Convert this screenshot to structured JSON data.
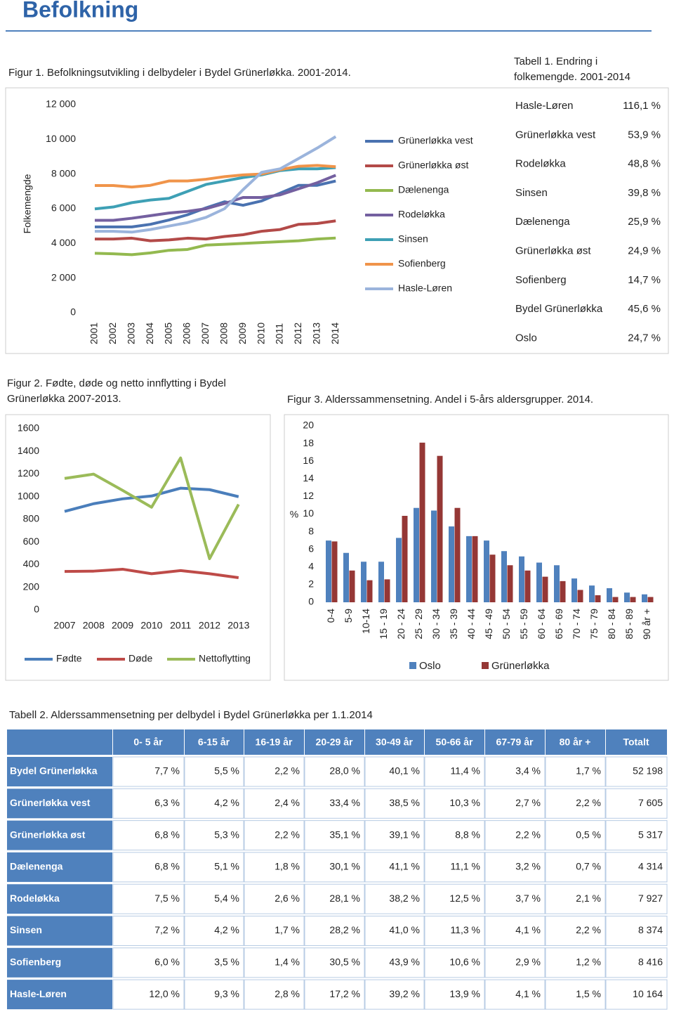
{
  "title": "Befolkning",
  "chart_data": [
    {
      "type": "line",
      "title": "Figur 1. Befolkningsutvikling i delbydeler i Bydel Grünerløkka. 2001-2014.",
      "y_label": "Folkemengde",
      "categories": [
        "2001",
        "2002",
        "2003",
        "2004",
        "2005",
        "2006",
        "2007",
        "2008",
        "2009",
        "2010",
        "2011",
        "2012",
        "2013",
        "2014"
      ],
      "ylim": [
        0,
        12000
      ],
      "yticks": [
        0,
        {
          "value": 2000,
          "label": "2 000"
        },
        {
          "value": 4000,
          "label": "4 000"
        },
        {
          "value": 6000,
          "label": "6 000"
        },
        {
          "value": 8000,
          "label": "8 000"
        },
        {
          "value": 10000,
          "label": "10 000"
        },
        {
          "value": 12000,
          "label": "12 000"
        }
      ],
      "series": [
        {
          "name": "Grünerløkka vest",
          "color": "#4a72b0",
          "values": [
            4950,
            4950,
            4950,
            5100,
            5350,
            5650,
            6050,
            6400,
            6200,
            6450,
            6900,
            7350,
            7350,
            7600
          ]
        },
        {
          "name": "Grünerløkka øst",
          "color": "#b34a48",
          "values": [
            4250,
            4250,
            4300,
            4150,
            4200,
            4300,
            4250,
            4400,
            4500,
            4700,
            4800,
            5100,
            5150,
            5300
          ]
        },
        {
          "name": "Dælenenga",
          "color": "#93b94f",
          "values": [
            3430,
            3400,
            3350,
            3450,
            3600,
            3650,
            3900,
            3950,
            4000,
            4050,
            4100,
            4150,
            4250,
            4310
          ]
        },
        {
          "name": "Rodeløkka",
          "color": "#7460a0",
          "values": [
            5330,
            5330,
            5450,
            5600,
            5750,
            5850,
            6000,
            6300,
            6650,
            6650,
            6800,
            7150,
            7500,
            7930
          ]
        },
        {
          "name": "Sinsen",
          "color": "#3ea0b5",
          "values": [
            5990,
            6100,
            6350,
            6500,
            6600,
            7000,
            7400,
            7600,
            7800,
            7950,
            8200,
            8300,
            8300,
            8370
          ]
        },
        {
          "name": "Sofienberg",
          "color": "#f0944a",
          "values": [
            7340,
            7340,
            7250,
            7350,
            7600,
            7600,
            7700,
            7850,
            7950,
            8000,
            8250,
            8450,
            8500,
            8420
          ]
        },
        {
          "name": "Hasle-Løren",
          "color": "#9bb4dc",
          "values": [
            4700,
            4700,
            4650,
            4800,
            5000,
            5200,
            5500,
            6000,
            7100,
            8100,
            8300,
            8900,
            9500,
            10160
          ]
        }
      ]
    },
    {
      "type": "line",
      "title": "Figur 2. Fødte, døde og netto innflytting i Bydel Grünerløkka 2007-2013.",
      "categories": [
        "2007",
        "2008",
        "2009",
        "2010",
        "2011",
        "2012",
        "2013"
      ],
      "ylim": [
        0,
        1600
      ],
      "yticks": [
        0,
        200,
        400,
        600,
        800,
        1000,
        1200,
        1400,
        1600
      ],
      "series": [
        {
          "name": "Fødte",
          "color": "#4a7ebb",
          "values": [
            870,
            938,
            981,
            1006,
            1075,
            1062,
            1000
          ]
        },
        {
          "name": "Døde",
          "color": "#be4b48",
          "values": [
            340,
            343,
            360,
            320,
            348,
            320,
            285
          ]
        },
        {
          "name": "Nettoflytting",
          "color": "#9bbb59",
          "values": [
            1161,
            1199,
            1056,
            907,
            1342,
            453,
            932
          ]
        }
      ]
    },
    {
      "type": "bar",
      "title": "Figur 3. Alderssammensetning. Andel i 5-års aldersgrupper. 2014.",
      "y_label": "%",
      "categories": [
        "0-4",
        "5-9",
        "10-14",
        "15 - 19",
        "20 - 24",
        "25 - 29",
        "30 - 34",
        "35 - 39",
        "40 - 44",
        "45 - 49",
        "50 - 54",
        "55 - 59",
        "60 - 64",
        "65 - 69",
        "70 - 74",
        "75 - 79",
        "80 - 84",
        "85 - 89",
        "90 år +"
      ],
      "ylim": [
        0,
        20
      ],
      "yticks": [
        0,
        2,
        4,
        6,
        8,
        10,
        12,
        14,
        16,
        18,
        20
      ],
      "series": [
        {
          "name": "Oslo",
          "color": "#4f81bd",
          "values": [
            7.0,
            5.6,
            4.6,
            4.6,
            7.3,
            10.7,
            10.4,
            8.6,
            7.5,
            7.0,
            5.8,
            5.2,
            4.5,
            4.2,
            2.7,
            1.9,
            1.6,
            1.1,
            0.9
          ]
        },
        {
          "name": "Grünerløkka",
          "color": "#953735",
          "values": [
            6.9,
            3.6,
            2.5,
            2.6,
            9.8,
            18.1,
            16.6,
            10.7,
            7.5,
            5.4,
            4.2,
            3.6,
            2.9,
            2.4,
            1.4,
            0.8,
            0.6,
            0.6,
            0.6
          ]
        }
      ]
    }
  ],
  "table1": {
    "title": "Tabell 1. Endring i folkemengde. 2001-2014",
    "rows": [
      [
        "Hasle-Løren",
        "116,1 %"
      ],
      [
        "Grünerløkka vest",
        "53,9 %"
      ],
      [
        "Rodeløkka",
        "48,8 %"
      ],
      [
        "Sinsen",
        "39,8 %"
      ],
      [
        "Dælenenga",
        "25,9 %"
      ],
      [
        "Grünerløkka øst",
        "24,9 %"
      ],
      [
        "Sofienberg",
        "14,7 %"
      ],
      [
        "Bydel Grünerløkka",
        "45,6 %"
      ],
      [
        "Oslo",
        "24,7 %"
      ]
    ]
  },
  "table2": {
    "title": "Tabell 2. Alderssammensetning per delbydel i Bydel Grünerløkka per 1.1.2014",
    "columns": [
      "0- 5 år",
      "6-15 år",
      "16-19 år",
      "20-29 år",
      "30-49 år",
      "50-66 år",
      "67-79 år",
      "80  år +",
      "Totalt"
    ],
    "rows": [
      [
        "Bydel Grünerløkka",
        "7,7 %",
        "5,5 %",
        "2,2 %",
        "28,0 %",
        "40,1 %",
        "11,4 %",
        "3,4 %",
        "1,7 %",
        "52 198"
      ],
      [
        "Grünerløkka vest",
        "6,3 %",
        "4,2 %",
        "2,4 %",
        "33,4 %",
        "38,5 %",
        "10,3 %",
        "2,7 %",
        "2,2 %",
        "7 605"
      ],
      [
        "Grünerløkka øst",
        "6,8 %",
        "5,3 %",
        "2,2 %",
        "35,1 %",
        "39,1 %",
        "8,8 %",
        "2,2 %",
        "0,5 %",
        "5 317"
      ],
      [
        "Dælenenga",
        "6,8 %",
        "5,1 %",
        "1,8 %",
        "30,1 %",
        "41,1 %",
        "11,1 %",
        "3,2 %",
        "0,7 %",
        "4 314"
      ],
      [
        "Rodeløkka",
        "7,5 %",
        "5,4 %",
        "2,6 %",
        "28,1 %",
        "38,2 %",
        "12,5 %",
        "3,7 %",
        "2,1 %",
        "7 927"
      ],
      [
        "Sinsen",
        "7,2 %",
        "4,2 %",
        "1,7 %",
        "28,2 %",
        "41,0 %",
        "11,3 %",
        "4,1 %",
        "2,2 %",
        "8 374"
      ],
      [
        "Sofienberg",
        "6,0 %",
        "3,5 %",
        "1,4 %",
        "30,5 %",
        "43,9 %",
        "10,6 %",
        "2,9 %",
        "1,2 %",
        "8 416"
      ],
      [
        "Hasle-Løren",
        "12,0 %",
        "9,3 %",
        "2,8 %",
        "17,2 %",
        "39,2 %",
        "13,9 %",
        "4,1 %",
        "1,5 %",
        "10 164"
      ]
    ]
  }
}
